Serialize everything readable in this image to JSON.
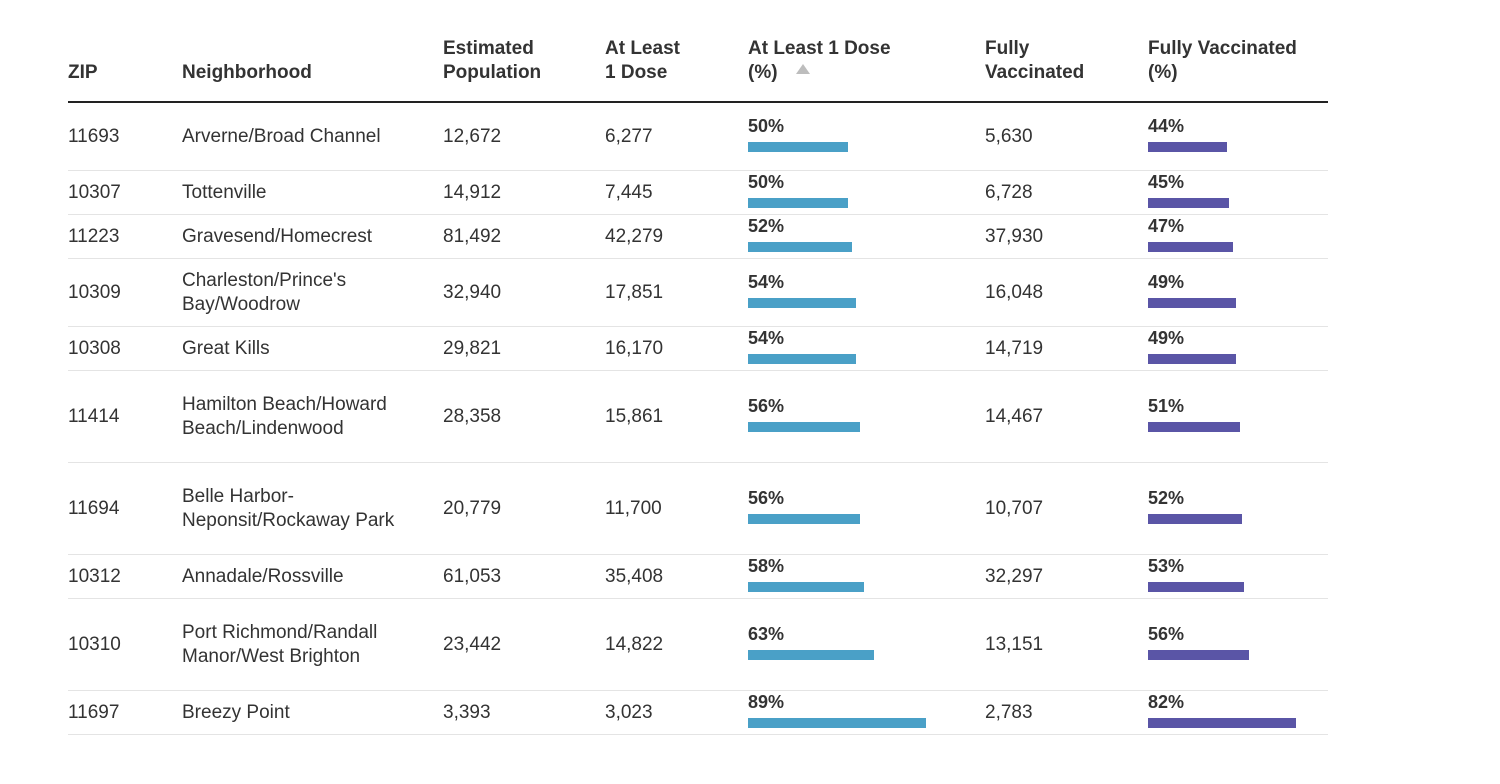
{
  "colors": {
    "dose_bar": "#4aa0c7",
    "full_bar": "#5a55a6",
    "header_rule": "#222222",
    "row_rule": "#e4e4e4",
    "sort_icon": "#bdbdbd"
  },
  "headers": {
    "zip": "ZIP",
    "neighborhood": "Neighborhood",
    "population": "Estimated\nPopulation",
    "dose": "At Least\n1 Dose",
    "dose_pct": "At Least 1 Dose\n(%)",
    "full": "Fully\nVaccinated",
    "full_pct": "Fully Vaccinated\n(%)"
  },
  "sort": {
    "column": "dose_pct",
    "direction": "ascending",
    "icon": "sort-ascending-icon"
  },
  "rows": [
    {
      "zip": "11693",
      "neighborhood": "Arverne/Broad Channel",
      "population": "12,672",
      "dose": "6,277",
      "dose_pct": "50%",
      "full": "5,630",
      "full_pct": "44%"
    },
    {
      "zip": "10307",
      "neighborhood": "Tottenville",
      "population": "14,912",
      "dose": "7,445",
      "dose_pct": "50%",
      "full": "6,728",
      "full_pct": "45%"
    },
    {
      "zip": "11223",
      "neighborhood": "Gravesend/Homecrest",
      "population": "81,492",
      "dose": "42,279",
      "dose_pct": "52%",
      "full": "37,930",
      "full_pct": "47%"
    },
    {
      "zip": "10309",
      "neighborhood": "Charleston/Prince's Bay/Woodrow",
      "population": "32,940",
      "dose": "17,851",
      "dose_pct": "54%",
      "full": "16,048",
      "full_pct": "49%"
    },
    {
      "zip": "10308",
      "neighborhood": "Great Kills",
      "population": "29,821",
      "dose": "16,170",
      "dose_pct": "54%",
      "full": "14,719",
      "full_pct": "49%"
    },
    {
      "zip": "11414",
      "neighborhood": "Hamilton Beach/Howard Beach/Lindenwood",
      "population": "28,358",
      "dose": "15,861",
      "dose_pct": "56%",
      "full": "14,467",
      "full_pct": "51%"
    },
    {
      "zip": "11694",
      "neighborhood": "Belle Harbor-Neponsit/Rockaway Park",
      "population": "20,779",
      "dose": "11,700",
      "dose_pct": "56%",
      "full": "10,707",
      "full_pct": "52%"
    },
    {
      "zip": "10312",
      "neighborhood": "Annadale/Rossville",
      "population": "61,053",
      "dose": "35,408",
      "dose_pct": "58%",
      "full": "32,297",
      "full_pct": "53%"
    },
    {
      "zip": "10310",
      "neighborhood": "Port Richmond/Randall Manor/West Brighton",
      "population": "23,442",
      "dose": "14,822",
      "dose_pct": "63%",
      "full": "13,151",
      "full_pct": "56%"
    },
    {
      "zip": "11697",
      "neighborhood": "Breezy Point",
      "population": "3,393",
      "dose": "3,023",
      "dose_pct": "89%",
      "full": "2,783",
      "full_pct": "82%"
    }
  ]
}
